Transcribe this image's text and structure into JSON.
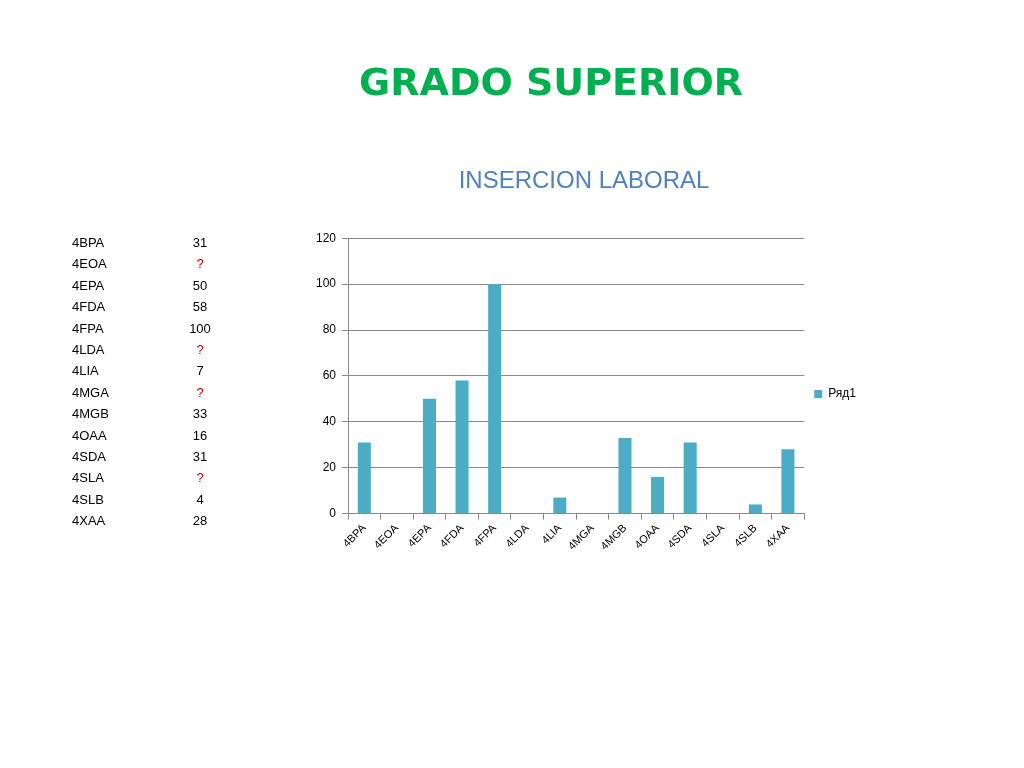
{
  "chart_data": [
    {
      "type": "other",
      "categories": [
        "4BPA",
        "4EOA",
        "4EPA",
        "4FDA",
        "4FPA",
        "4LDA",
        "4LIA",
        "4MGA",
        "4MGB",
        "4OAA",
        "4SDA",
        "4SLA",
        "4SLB",
        "4XAA"
      ],
      "value_labels": [
        "31",
        "?",
        "50",
        "58",
        "100",
        "?",
        "7",
        "?",
        "33",
        "16",
        "31",
        "?",
        "4",
        "28"
      ]
    },
    {
      "type": "bar",
      "title": "GRADO SUPERIOR",
      "subtitle": "INSERCION LABORAL",
      "categories": [
        "4BPA",
        "4EOA",
        "4EPA",
        "4FDA",
        "4FPA",
        "4LDA",
        "4LIA",
        "4MGA",
        "4MGB",
        "4OAA",
        "4SDA",
        "4SLA",
        "4SLB",
        "4XAA"
      ],
      "series": [
        {
          "name": "Ряд1",
          "color": "#4bacc6",
          "values": [
            31,
            null,
            50,
            58,
            100,
            null,
            7,
            null,
            33,
            16,
            31,
            null,
            4,
            28
          ]
        }
      ],
      "ylim": [
        0,
        120
      ],
      "yticks": [
        0,
        20,
        40,
        60,
        80,
        100,
        120
      ],
      "grid": "y",
      "legend": "right"
    }
  ]
}
